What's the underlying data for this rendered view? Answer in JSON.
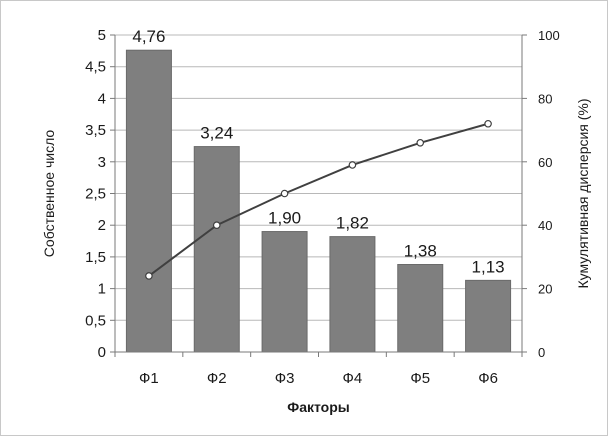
{
  "chart_data": {
    "type": "bar",
    "categories": [
      "Ф1",
      "Ф2",
      "Ф3",
      "Ф4",
      "Ф5",
      "Ф6"
    ],
    "values": [
      4.76,
      3.24,
      1.9,
      1.82,
      1.38,
      1.13
    ],
    "data_labels": [
      "4,76",
      "3,24",
      "1,90",
      "1,82",
      "1,38",
      "1,13"
    ],
    "line_series": {
      "values": [
        24,
        40,
        50,
        59,
        66,
        72
      ],
      "axis": "right"
    },
    "xlabel": "Факторы",
    "ylabel": "Собственное число",
    "y2label": "Кумулятивная дисперсия (%)",
    "ylim": [
      0,
      5
    ],
    "y2lim": [
      0,
      100
    ],
    "yticks": [
      "0",
      "0,5",
      "1",
      "1,5",
      "2",
      "2,5",
      "3",
      "3,5",
      "4",
      "4,5",
      "5"
    ],
    "y2ticks": [
      "0",
      "20",
      "40",
      "60",
      "80",
      "100"
    ],
    "grid": true,
    "bar_color": "#7f7f7f",
    "line_color": "#404040"
  }
}
